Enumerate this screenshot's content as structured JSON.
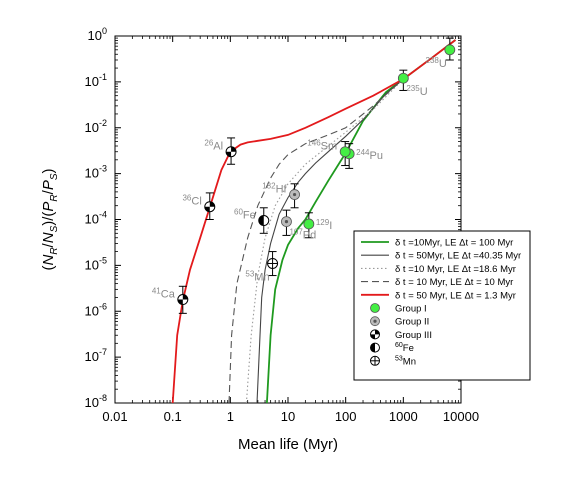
{
  "chart_data": {
    "type": "line",
    "xlabel": "Mean life (Myr)",
    "ylabel": "(N_R/N_S)/(P_R/P_S)",
    "xscale": "log",
    "yscale": "log",
    "xlim": [
      0.01,
      10000
    ],
    "ylim": [
      1e-08,
      1
    ],
    "xticks": [
      {
        "v": 0.01,
        "label": "0.01"
      },
      {
        "v": 0.1,
        "label": "0.1"
      },
      {
        "v": 1,
        "label": "1"
      },
      {
        "v": 10,
        "label": "10"
      },
      {
        "v": 100,
        "label": "100"
      },
      {
        "v": 1000,
        "label": "1000"
      },
      {
        "v": 10000,
        "label": "10000"
      }
    ],
    "yticks": [
      {
        "v": 1e-08,
        "base": "10",
        "exp": "-8"
      },
      {
        "v": 1e-07,
        "base": "10",
        "exp": "-7"
      },
      {
        "v": 1e-06,
        "base": "10",
        "exp": "-6"
      },
      {
        "v": 1e-05,
        "base": "10",
        "exp": "-5"
      },
      {
        "v": 0.0001,
        "base": "10",
        "exp": "-4"
      },
      {
        "v": 0.001,
        "base": "10",
        "exp": "-3"
      },
      {
        "v": 0.01,
        "base": "10",
        "exp": "-2"
      },
      {
        "v": 0.1,
        "base": "10",
        "exp": "-1"
      },
      {
        "v": 1,
        "base": "10",
        "exp": "0"
      }
    ],
    "series": [
      {
        "name": "δ t =10Myr, LE Δt = 100 Myr",
        "color": "#1f9a1f",
        "dash": "solid",
        "x": [
          4.3,
          5,
          6,
          8,
          10,
          15,
          20,
          30,
          50,
          80,
          100,
          200,
          500,
          1000,
          3000,
          8000
        ],
        "y": [
          1e-08,
          3e-07,
          3e-06,
          1.3e-05,
          2.8e-05,
          6.5e-05,
          0.0001,
          0.00024,
          0.0007,
          0.0018,
          0.0028,
          0.014,
          0.06,
          0.115,
          0.32,
          0.82
        ]
      },
      {
        "name": "δ t = 50Myr, LE Δt =40.35 Myr",
        "color": "#444444",
        "dash": "solid",
        "x": [
          2.9,
          3.5,
          4,
          5,
          7,
          10,
          15,
          20,
          30,
          50,
          100,
          200,
          500,
          1000,
          3000,
          8000
        ],
        "y": [
          1e-08,
          2e-06,
          8e-06,
          3e-05,
          0.00013,
          0.0003,
          0.00065,
          0.001,
          0.0017,
          0.003,
          0.0065,
          0.015,
          0.055,
          0.115,
          0.32,
          0.82
        ]
      },
      {
        "name": "δ t =10 Myr, LE Δt =18.6 Myr",
        "color": "#9a9a9a",
        "dash": "dot",
        "x": [
          1.9,
          2.3,
          3,
          4,
          6,
          10,
          20,
          50,
          100,
          300,
          1000,
          3000,
          8000
        ],
        "y": [
          1e-08,
          3e-07,
          6e-06,
          4e-05,
          0.0002,
          0.0006,
          0.0016,
          0.004,
          0.008,
          0.025,
          0.115,
          0.32,
          0.82
        ]
      },
      {
        "name": "δ t = 10 Myr, LE Δt = 10 Myr",
        "color": "#555555",
        "dash": "dash",
        "x": [
          0.95,
          1.05,
          1.3,
          2,
          3,
          5,
          7,
          10,
          20,
          50,
          100,
          300,
          1000,
          3000,
          8000
        ],
        "y": [
          1e-08,
          3e-07,
          4e-06,
          4e-05,
          0.0002,
          0.0008,
          0.0016,
          0.0026,
          0.0045,
          0.007,
          0.01,
          0.03,
          0.115,
          0.32,
          0.82
        ]
      },
      {
        "name": "δ t = 50 Myr, LE Δt = 1.3 Myr",
        "color": "#e31a1c",
        "dash": "solid",
        "x": [
          0.1,
          0.12,
          0.15,
          0.2,
          0.3,
          0.45,
          0.7,
          1,
          1.5,
          2,
          3,
          5,
          10,
          20,
          50,
          100,
          300,
          1000,
          3000,
          8000
        ],
        "y": [
          1e-08,
          3e-07,
          1.7e-06,
          8e-06,
          4e-05,
          0.0002,
          0.0012,
          0.003,
          0.0043,
          0.0048,
          0.0052,
          0.0057,
          0.007,
          0.01,
          0.017,
          0.026,
          0.05,
          0.115,
          0.32,
          0.82
        ]
      }
    ],
    "points": [
      {
        "id": "U238",
        "x": 6400,
        "y": 0.5,
        "lo": 0.3,
        "hi": 0.9,
        "group": "I",
        "label_base": "U",
        "label_mass": "238",
        "label_side": "below-left"
      },
      {
        "id": "U235",
        "x": 1000,
        "y": 0.12,
        "lo": 0.065,
        "hi": 0.18,
        "group": "I",
        "label_base": "U",
        "label_mass": "235",
        "label_side": "below-right"
      },
      {
        "id": "Pu244",
        "x": 115,
        "y": 0.0027,
        "lo": 0.0013,
        "hi": 0.0045,
        "group": "I",
        "label_base": "Pu",
        "label_mass": "244",
        "label_side": "right"
      },
      {
        "id": "Sm146",
        "x": 98,
        "y": 0.003,
        "lo": 0.0015,
        "hi": 0.005,
        "group": "I",
        "label_base": "Sm",
        "label_mass": "146",
        "label_side": "left"
      },
      {
        "id": "I129",
        "x": 23,
        "y": 8e-05,
        "lo": 4e-05,
        "hi": 0.00014,
        "group": "I",
        "label_base": "I",
        "label_mass": "129",
        "label_side": "right"
      },
      {
        "id": "Hf182",
        "x": 13,
        "y": 0.00035,
        "lo": 0.00018,
        "hi": 0.0006,
        "group": "II",
        "label_base": "Hf",
        "label_mass": "182",
        "label_side": "left"
      },
      {
        "id": "Pd107",
        "x": 9.4,
        "y": 9e-05,
        "lo": 4.5e-05,
        "hi": 0.00016,
        "group": "II",
        "label_base": "Pd",
        "label_mass": "107",
        "label_side": "below-right"
      },
      {
        "id": "Al26",
        "x": 1.03,
        "y": 0.003,
        "lo": 0.0016,
        "hi": 0.006,
        "group": "III",
        "label_base": "Al",
        "label_mass": "26",
        "label_side": "left"
      },
      {
        "id": "Cl36",
        "x": 0.44,
        "y": 0.00019,
        "lo": 0.0001,
        "hi": 0.00038,
        "group": "III",
        "label_base": "Cl",
        "label_mass": "36",
        "label_side": "left"
      },
      {
        "id": "Ca41",
        "x": 0.15,
        "y": 1.8e-06,
        "lo": 9e-07,
        "hi": 3.5e-06,
        "group": "III",
        "label_base": "Ca",
        "label_mass": "41",
        "label_side": "left"
      },
      {
        "id": "Fe60",
        "x": 3.8,
        "y": 9.5e-05,
        "lo": 5e-05,
        "hi": 0.00018,
        "group": "Fe60",
        "label_base": "Fe",
        "label_mass": "60",
        "label_side": "left"
      },
      {
        "id": "Mn53",
        "x": 5.4,
        "y": 1.1e-05,
        "lo": 6e-06,
        "hi": 2e-05,
        "group": "Mn53",
        "label_base": "Mn",
        "label_mass": "53",
        "label_side": "below-left"
      }
    ],
    "legend": {
      "position": "right",
      "lines": [
        {
          "label": "δ t =10Myr, LE Δt = 100 Myr",
          "color": "#1f9a1f",
          "dash": "solid"
        },
        {
          "label": "δ t = 50Myr, LE Δt =40.35 Myr",
          "color": "#444444",
          "dash": "solid"
        },
        {
          "label": "δ t =10 Myr, LE Δt =18.6 Myr",
          "color": "#9a9a9a",
          "dash": "dot"
        },
        {
          "label": "δ t = 10 Myr, LE Δt = 10 Myr",
          "color": "#555555",
          "dash": "dash"
        },
        {
          "label": "δ t = 50 Myr, LE Δt = 1.3 Myr",
          "color": "#e31a1c",
          "dash": "solid"
        }
      ],
      "markers": [
        {
          "label": "Group I",
          "group": "I"
        },
        {
          "label": "Group II",
          "group": "II"
        },
        {
          "label": "Group III",
          "group": "III"
        },
        {
          "label_base": "Fe",
          "label_mass": "60",
          "group": "Fe60"
        },
        {
          "label_base": "Mn",
          "label_mass": "53",
          "group": "Mn53"
        }
      ]
    },
    "group_colors": {
      "I": "#44ee44",
      "II": "#bbbbbb"
    }
  }
}
